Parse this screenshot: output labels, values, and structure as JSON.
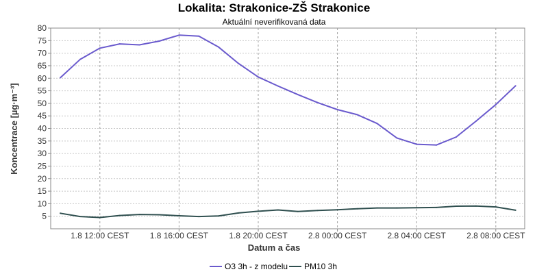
{
  "chart_data": {
    "type": "line",
    "title": "Lokalita: Strakonice-ZŠ Strakonice",
    "subtitle": "Aktuální neverifikovaná data",
    "xlabel": "Datum a čas",
    "ylabel": "Koncentrace [µg·m⁻³]",
    "ylim": [
      0,
      80
    ],
    "yticks": [
      5,
      10,
      15,
      20,
      25,
      30,
      35,
      40,
      45,
      50,
      55,
      60,
      65,
      70,
      75,
      80
    ],
    "x": [
      "1.8 10:00",
      "1.8 11:00",
      "1.8 12:00",
      "1.8 13:00",
      "1.8 14:00",
      "1.8 15:00",
      "1.8 16:00",
      "1.8 17:00",
      "1.8 18:00",
      "1.8 19:00",
      "1.8 20:00",
      "1.8 21:00",
      "1.8 22:00",
      "1.8 23:00",
      "2.8 00:00",
      "2.8 01:00",
      "2.8 02:00",
      "2.8 03:00",
      "2.8 04:00",
      "2.8 05:00",
      "2.8 06:00",
      "2.8 07:00",
      "2.8 08:00",
      "2.8 09:00"
    ],
    "xtick_labels": [
      {
        "at": "1.8 12:00",
        "label": "1.8 12:00 CEST"
      },
      {
        "at": "1.8 16:00",
        "label": "1.8 16:00 CEST"
      },
      {
        "at": "1.8 20:00",
        "label": "1.8 20:00 CEST"
      },
      {
        "at": "2.8 00:00",
        "label": "2.8 00:00 CEST"
      },
      {
        "at": "2.8 04:00",
        "label": "2.8 04:00 CEST"
      },
      {
        "at": "2.8 08:00",
        "label": "2.8 08:00 CEST"
      }
    ],
    "series": [
      {
        "name": "O3 3h - z modelu",
        "color": "#6a5acd",
        "values": [
          60.2,
          67.5,
          72.0,
          73.7,
          73.3,
          74.8,
          77.2,
          76.8,
          72.4,
          65.9,
          60.5,
          56.9,
          53.5,
          50.3,
          47.5,
          45.5,
          42.0,
          36.2,
          33.7,
          33.4,
          36.6,
          42.9,
          49.5,
          57.0
        ]
      },
      {
        "name": "PM10 3h",
        "color": "#2f4f4f",
        "values": [
          6.2,
          4.9,
          4.5,
          5.3,
          5.7,
          5.6,
          5.2,
          4.9,
          5.1,
          6.3,
          7.0,
          7.5,
          6.9,
          7.3,
          7.6,
          8.0,
          8.3,
          8.3,
          8.4,
          8.5,
          9.0,
          9.1,
          8.7,
          7.4
        ]
      }
    ],
    "grid": true,
    "legend_position": "bottom"
  }
}
